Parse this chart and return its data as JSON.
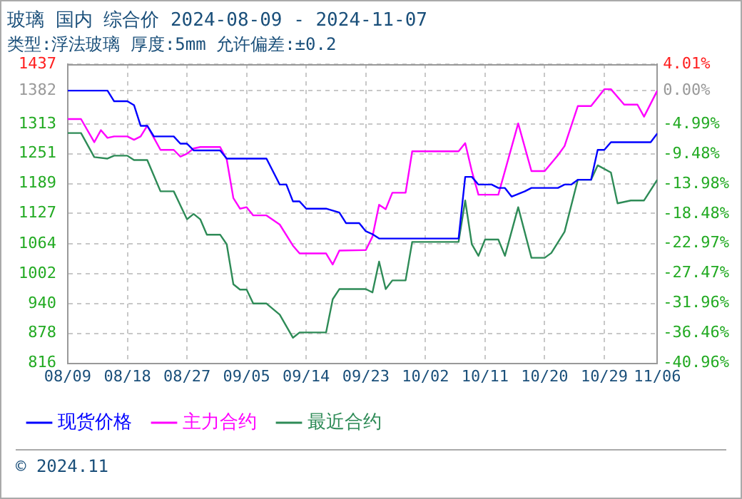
{
  "chart_data": {
    "type": "line",
    "title": "玻璃 国内 综合价 2024-08-09 - 2024-11-07",
    "subtitle": "类型:浮法玻璃 厚度:5mm 允许偏差:±0.2",
    "annotations": [
      "© 2024.11"
    ],
    "xlim": [
      "2024-08-09",
      "2024-11-06"
    ],
    "xticks": [
      {
        "value": "2024-08-09",
        "label": "08/09"
      },
      {
        "value": "2024-08-18",
        "label": "08/18"
      },
      {
        "value": "2024-08-27",
        "label": "08/27"
      },
      {
        "value": "2024-09-05",
        "label": "09/05"
      },
      {
        "value": "2024-09-14",
        "label": "09/14"
      },
      {
        "value": "2024-09-23",
        "label": "09/23"
      },
      {
        "value": "2024-10-02",
        "label": "10/02"
      },
      {
        "value": "2024-10-11",
        "label": "10/11"
      },
      {
        "value": "2024-10-20",
        "label": "10/20"
      },
      {
        "value": "2024-10-29",
        "label": "10/29"
      },
      {
        "value": "2024-11-06",
        "label": "11/06"
      }
    ],
    "ylim": [
      816,
      1437
    ],
    "yticks": [
      816,
      878,
      940,
      1002,
      1064,
      1127,
      1189,
      1251,
      1313,
      1382,
      1437
    ],
    "y2lim": [
      -40.96,
      4.01
    ],
    "y2ticks": [
      {
        "value": -40.96,
        "label": "-40.96%"
      },
      {
        "value": -36.46,
        "label": "-36.46%"
      },
      {
        "value": -31.96,
        "label": "-31.96%"
      },
      {
        "value": -27.47,
        "label": "-27.47%"
      },
      {
        "value": -22.97,
        "label": "-22.97%"
      },
      {
        "value": -18.48,
        "label": "-18.48%"
      },
      {
        "value": -13.98,
        "label": "-13.98%"
      },
      {
        "value": -9.48,
        "label": "-9.48%"
      },
      {
        "value": -4.99,
        "label": "-4.99%"
      },
      {
        "value": 0,
        "label": "0.00%"
      },
      {
        "value": 4.01,
        "label": "4.01%"
      }
    ],
    "grid": true,
    "legend": "bottom left",
    "marker": "none",
    "line_style": "solid",
    "series": [
      {
        "name": "现货价格",
        "color": "#0000ff",
        "x": [
          "2024-08-09",
          "2024-08-15",
          "2024-08-16",
          "2024-08-18",
          "2024-08-19",
          "2024-08-20",
          "2024-08-21",
          "2024-08-22",
          "2024-08-25",
          "2024-08-26",
          "2024-08-27",
          "2024-08-28",
          "2024-09-01",
          "2024-09-02",
          "2024-09-08",
          "2024-09-10",
          "2024-09-11",
          "2024-09-12",
          "2024-09-13",
          "2024-09-14",
          "2024-09-17",
          "2024-09-19",
          "2024-09-20",
          "2024-09-22",
          "2024-09-23",
          "2024-09-24",
          "2024-09-25",
          "2024-10-07",
          "2024-10-08",
          "2024-10-09",
          "2024-10-10",
          "2024-10-12",
          "2024-10-13",
          "2024-10-14",
          "2024-10-15",
          "2024-10-17",
          "2024-10-18",
          "2024-10-22",
          "2024-10-23",
          "2024-10-24",
          "2024-10-25",
          "2024-10-27",
          "2024-10-28",
          "2024-10-29",
          "2024-10-30",
          "2024-11-05",
          "2024-11-06"
        ],
        "values": [
          1382,
          1382,
          1360,
          1360,
          1352,
          1309,
          1309,
          1287,
          1287,
          1272,
          1272,
          1258,
          1258,
          1241,
          1241,
          1187,
          1187,
          1152,
          1152,
          1137,
          1137,
          1129,
          1107,
          1107,
          1090,
          1084,
          1075,
          1075,
          1203,
          1203,
          1187,
          1187,
          1180,
          1180,
          1162,
          1173,
          1180,
          1180,
          1187,
          1187,
          1197,
          1197,
          1259,
          1259,
          1275,
          1275,
          1293
        ]
      },
      {
        "name": "主力合约",
        "color": "#ff00ff",
        "x": [
          "2024-08-09",
          "2024-08-11",
          "2024-08-13",
          "2024-08-14",
          "2024-08-15",
          "2024-08-16",
          "2024-08-18",
          "2024-08-19",
          "2024-08-20",
          "2024-08-21",
          "2024-08-22",
          "2024-08-23",
          "2024-08-25",
          "2024-08-26",
          "2024-08-27",
          "2024-08-28",
          "2024-08-29",
          "2024-09-01",
          "2024-09-02",
          "2024-09-03",
          "2024-09-04",
          "2024-09-05",
          "2024-09-06",
          "2024-09-08",
          "2024-09-10",
          "2024-09-12",
          "2024-09-13",
          "2024-09-17",
          "2024-09-18",
          "2024-09-19",
          "2024-09-23",
          "2024-09-24",
          "2024-09-25",
          "2024-09-26",
          "2024-09-27",
          "2024-09-29",
          "2024-09-30",
          "2024-10-07",
          "2024-10-08",
          "2024-10-09",
          "2024-10-10",
          "2024-10-13",
          "2024-10-16",
          "2024-10-18",
          "2024-10-20",
          "2024-10-22",
          "2024-10-23",
          "2024-10-25",
          "2024-10-27",
          "2024-10-29",
          "2024-10-30",
          "2024-11-01",
          "2024-11-03",
          "2024-11-04",
          "2024-11-06"
        ],
        "values": [
          1323,
          1323,
          1275,
          1300,
          1284,
          1287,
          1287,
          1280,
          1287,
          1309,
          1284,
          1259,
          1259,
          1245,
          1251,
          1262,
          1265,
          1265,
          1239,
          1159,
          1137,
          1140,
          1123,
          1123,
          1104,
          1060,
          1044,
          1044,
          1021,
          1050,
          1051,
          1079,
          1145,
          1136,
          1170,
          1170,
          1256,
          1256,
          1273,
          1215,
          1166,
          1166,
          1314,
          1215,
          1215,
          1248,
          1267,
          1350,
          1350,
          1385,
          1385,
          1353,
          1353,
          1328,
          1382
        ]
      },
      {
        "name": "最近合约",
        "color": "#2e8b57",
        "x": [
          "2024-08-09",
          "2024-08-11",
          "2024-08-13",
          "2024-08-15",
          "2024-08-16",
          "2024-08-18",
          "2024-08-19",
          "2024-08-21",
          "2024-08-23",
          "2024-08-25",
          "2024-08-27",
          "2024-08-28",
          "2024-08-29",
          "2024-08-30",
          "2024-09-01",
          "2024-09-02",
          "2024-09-03",
          "2024-09-04",
          "2024-09-05",
          "2024-09-06",
          "2024-09-08",
          "2024-09-10",
          "2024-09-12",
          "2024-09-13",
          "2024-09-17",
          "2024-09-18",
          "2024-09-19",
          "2024-09-23",
          "2024-09-24",
          "2024-09-25",
          "2024-09-26",
          "2024-09-27",
          "2024-09-29",
          "2024-09-30",
          "2024-10-07",
          "2024-10-08",
          "2024-10-09",
          "2024-10-10",
          "2024-10-11",
          "2024-10-13",
          "2024-10-14",
          "2024-10-16",
          "2024-10-18",
          "2024-10-20",
          "2024-10-21",
          "2024-10-23",
          "2024-10-25",
          "2024-10-27",
          "2024-10-28",
          "2024-10-30",
          "2024-10-31",
          "2024-11-02",
          "2024-11-04",
          "2024-11-06"
        ],
        "values": [
          1294,
          1294,
          1244,
          1241,
          1247,
          1247,
          1238,
          1238,
          1173,
          1173,
          1115,
          1126,
          1115,
          1083,
          1083,
          1063,
          980,
          969,
          969,
          940,
          940,
          917,
          869,
          880,
          880,
          949,
          970,
          970,
          963,
          1027,
          970,
          988,
          988,
          1068,
          1068,
          1154,
          1063,
          1039,
          1073,
          1073,
          1039,
          1140,
          1035,
          1035,
          1045,
          1089,
          1197,
          1197,
          1227,
          1212,
          1148,
          1154,
          1154,
          1197
        ]
      }
    ]
  }
}
